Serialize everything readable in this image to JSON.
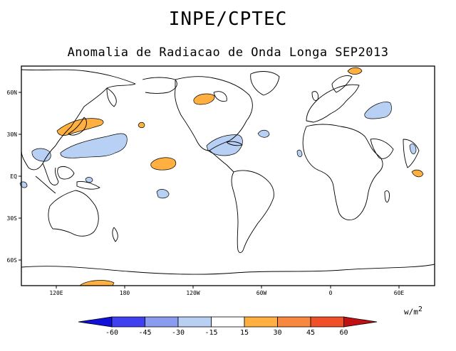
{
  "header": {
    "title": "INPE/CPTEC",
    "subtitle": "Anomalia de Radiacao de Onda Longa SEP2013"
  },
  "map": {
    "lat_ticks": [
      "60N",
      "30N",
      "EQ",
      "30S",
      "60S"
    ],
    "lon_ticks": [
      "120E",
      "180",
      "120W",
      "60W",
      "0",
      "60E"
    ],
    "anomaly_regions": [
      {
        "label": "East Asia / Japan",
        "sign": "positive"
      },
      {
        "label": "Western Pacific",
        "sign": "negative"
      },
      {
        "label": "Central Pacific",
        "sign": "positive"
      },
      {
        "label": "Caribbean",
        "sign": "negative"
      },
      {
        "label": "North America",
        "sign": "positive"
      },
      {
        "label": "Western Asia",
        "sign": "negative"
      },
      {
        "label": "Indian Ocean",
        "sign": "positive"
      }
    ]
  },
  "legend": {
    "units_base": "w/m",
    "units_exp": "2",
    "ticks": [
      "-60",
      "-45",
      "-30",
      "-15",
      "15",
      "30",
      "45",
      "60"
    ],
    "colors": [
      "#1010d8",
      "#4040f0",
      "#8a9cf0",
      "#b8d0f4",
      "#ffffff",
      "#ffb040",
      "#f88840",
      "#f05028",
      "#c01010"
    ]
  }
}
